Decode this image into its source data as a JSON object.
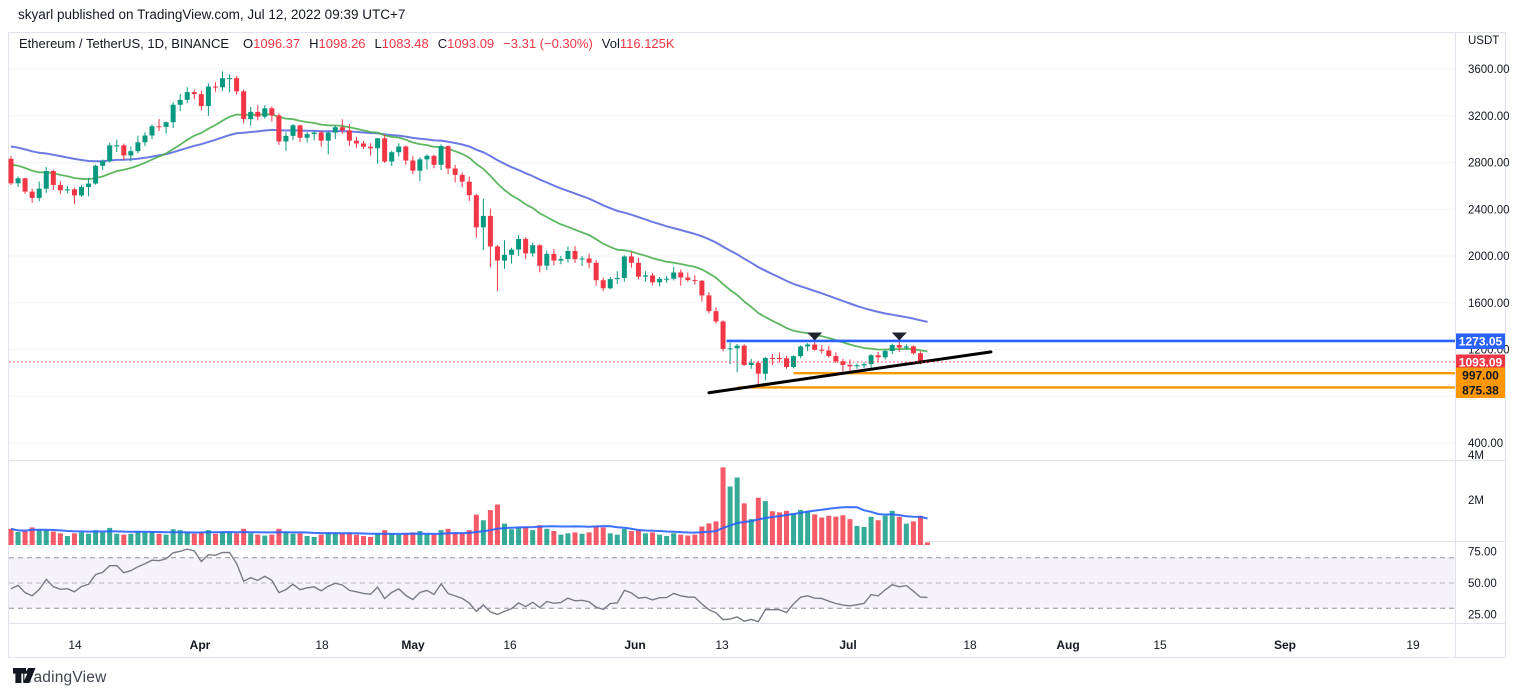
{
  "header": {
    "title": "skyarl published on TradingView.com, Jul 12, 2022 09:39 UTC+7"
  },
  "legend": {
    "symbol": "Ethereum / TetherUS, 1D, BINANCE",
    "fields": [
      {
        "k": "O",
        "v": "1096.37"
      },
      {
        "k": "H",
        "v": "1098.26"
      },
      {
        "k": "L",
        "v": "1083.48"
      },
      {
        "k": "C",
        "v": "1093.09"
      }
    ],
    "change": "−3.31 (−0.30%)",
    "vol_label": "Vol",
    "vol_value": "116.125K"
  },
  "footer": {
    "brand": "TradingView"
  },
  "colors": {
    "up": "#089981",
    "down": "#F23645",
    "ema_fast": "#4CAF50",
    "ema_slow": "#5C6BE0",
    "volume_ma": "#2962FF",
    "resistance": "#2962FF",
    "support": "#FF9800",
    "current_price": "#F23645",
    "trendline": "#000000",
    "rsi_line": "#787B86",
    "rsi_band": "rgba(126,87,194,0.08)",
    "grid": "#F2F4F9",
    "frame": "#E0E3EB",
    "text": "#131722"
  },
  "chart_data": {
    "type": "candlestick",
    "title": "Ethereum / TetherUS, 1D, BINANCE",
    "currency": "USDT",
    "price_axis_ticks": [
      "3600.00",
      "3200.00",
      "2800.00",
      "2400.00",
      "2000.00",
      "1600.00",
      "1200.00",
      "400.00"
    ],
    "price_axis_tick_values": [
      3600,
      3200,
      2800,
      2400,
      2000,
      1600,
      1200,
      400
    ],
    "grid_levels": [
      3600,
      3200,
      2800,
      2400,
      2000,
      1600,
      1200,
      800,
      400
    ],
    "volume_axis": [
      {
        "label": "4M",
        "value": 4
      },
      {
        "label": "2M",
        "value": 2
      }
    ],
    "rsi_axis": [
      {
        "label": "75.00",
        "value": 75
      },
      {
        "label": "50.00",
        "value": 50
      },
      {
        "label": "25.00",
        "value": 25
      }
    ],
    "time_axis_labels": [
      "14",
      "Apr",
      "18",
      "May",
      "16",
      "Jun",
      "13",
      "Jul",
      "18",
      "Aug",
      "15",
      "Sep",
      "19"
    ],
    "time_axis_month_flags": [
      0,
      1,
      0,
      1,
      0,
      1,
      0,
      1,
      0,
      1,
      0,
      1,
      0
    ],
    "candles": [
      [
        2832,
        2857,
        2607,
        2622
      ],
      [
        2622,
        2680,
        2590,
        2665
      ],
      [
        2665,
        2670,
        2532,
        2551
      ],
      [
        2551,
        2576,
        2454,
        2497
      ],
      [
        2497,
        2637,
        2468,
        2576
      ],
      [
        2576,
        2760,
        2540,
        2727
      ],
      [
        2727,
        2739,
        2565,
        2608
      ],
      [
        2608,
        2640,
        2528,
        2562
      ],
      [
        2562,
        2600,
        2538,
        2570
      ],
      [
        2570,
        2585,
        2444,
        2518
      ],
      [
        2518,
        2604,
        2505,
        2590
      ],
      [
        2590,
        2668,
        2510,
        2620
      ],
      [
        2620,
        2781,
        2610,
        2772
      ],
      [
        2772,
        2826,
        2735,
        2812
      ],
      [
        2812,
        2969,
        2800,
        2946
      ],
      [
        2946,
        2996,
        2890,
        2947
      ],
      [
        2947,
        2961,
        2820,
        2860
      ],
      [
        2860,
        2936,
        2810,
        2897
      ],
      [
        2897,
        3030,
        2880,
        2973
      ],
      [
        2973,
        3059,
        2940,
        3031
      ],
      [
        3031,
        3125,
        3000,
        3110
      ],
      [
        3110,
        3172,
        3070,
        3105
      ],
      [
        3105,
        3150,
        3047,
        3145
      ],
      [
        3145,
        3315,
        3095,
        3294
      ],
      [
        3294,
        3386,
        3240,
        3336
      ],
      [
        3336,
        3444,
        3310,
        3402
      ],
      [
        3402,
        3425,
        3340,
        3385
      ],
      [
        3385,
        3415,
        3245,
        3283
      ],
      [
        3283,
        3475,
        3200,
        3450
      ],
      [
        3450,
        3488,
        3405,
        3444
      ],
      [
        3444,
        3580,
        3410,
        3521
      ],
      [
        3521,
        3555,
        3400,
        3522
      ],
      [
        3522,
        3540,
        3380,
        3409
      ],
      [
        3409,
        3425,
        3135,
        3171
      ],
      [
        3171,
        3275,
        3115,
        3233
      ],
      [
        3233,
        3290,
        3160,
        3192
      ],
      [
        3192,
        3290,
        3175,
        3264
      ],
      [
        3264,
        3280,
        3150,
        3203
      ],
      [
        3203,
        3220,
        2950,
        2980
      ],
      [
        2980,
        3060,
        2900,
        3028
      ],
      [
        3028,
        3130,
        2990,
        3118
      ],
      [
        3118,
        3125,
        2975,
        3012
      ],
      [
        3012,
        3060,
        2970,
        3043
      ],
      [
        3043,
        3070,
        2990,
        3057
      ],
      [
        3057,
        3070,
        2935,
        2987
      ],
      [
        2987,
        3065,
        2870,
        3056
      ],
      [
        3056,
        3115,
        3000,
        3102
      ],
      [
        3102,
        3170,
        3045,
        3075
      ],
      [
        3075,
        3130,
        2940,
        2987
      ],
      [
        2987,
        3020,
        2925,
        2963
      ],
      [
        2963,
        2985,
        2915,
        2935
      ],
      [
        2935,
        2965,
        2860,
        2922
      ],
      [
        2922,
        3010,
        2790,
        3007
      ],
      [
        3007,
        3040,
        2795,
        2808
      ],
      [
        2808,
        2900,
        2770,
        2888
      ],
      [
        2888,
        2965,
        2850,
        2937
      ],
      [
        2937,
        2945,
        2780,
        2817
      ],
      [
        2817,
        2855,
        2700,
        2730
      ],
      [
        2730,
        2845,
        2640,
        2827
      ],
      [
        2827,
        2870,
        2740,
        2857
      ],
      [
        2857,
        2865,
        2750,
        2780
      ],
      [
        2780,
        2955,
        2735,
        2940
      ],
      [
        2940,
        2945,
        2700,
        2749
      ],
      [
        2749,
        2780,
        2630,
        2694
      ],
      [
        2694,
        2715,
        2590,
        2636
      ],
      [
        2636,
        2680,
        2470,
        2520
      ],
      [
        2520,
        2530,
        2155,
        2245
      ],
      [
        2245,
        2490,
        2050,
        2343
      ],
      [
        2343,
        2405,
        1905,
        2082
      ],
      [
        2082,
        2095,
        1700,
        1961
      ],
      [
        1961,
        2135,
        1890,
        2010
      ],
      [
        2010,
        2070,
        1935,
        2055
      ],
      [
        2055,
        2180,
        2000,
        2146
      ],
      [
        2146,
        2160,
        1975,
        2022
      ],
      [
        2022,
        2115,
        1995,
        2092
      ],
      [
        2092,
        2100,
        1860,
        1917
      ],
      [
        1917,
        2045,
        1880,
        2018
      ],
      [
        2018,
        2060,
        1920,
        1961
      ],
      [
        1961,
        2000,
        1930,
        1974
      ],
      [
        1974,
        2080,
        1945,
        2043
      ],
      [
        2043,
        2085,
        1940,
        1973
      ],
      [
        1973,
        2000,
        1915,
        1979
      ],
      [
        1979,
        2020,
        1895,
        1942
      ],
      [
        1942,
        1965,
        1745,
        1793
      ],
      [
        1793,
        1815,
        1700,
        1724
      ],
      [
        1724,
        1820,
        1715,
        1802
      ],
      [
        1802,
        1870,
        1760,
        1812
      ],
      [
        1812,
        2005,
        1780,
        1996
      ],
      [
        1996,
        2035,
        1900,
        1942
      ],
      [
        1942,
        1985,
        1800,
        1823
      ],
      [
        1823,
        1870,
        1780,
        1834
      ],
      [
        1834,
        1855,
        1750,
        1775
      ],
      [
        1775,
        1820,
        1740,
        1804
      ],
      [
        1804,
        1830,
        1770,
        1806
      ],
      [
        1806,
        1905,
        1790,
        1859
      ],
      [
        1859,
        1885,
        1745,
        1816
      ],
      [
        1816,
        1860,
        1780,
        1794
      ],
      [
        1794,
        1835,
        1755,
        1788
      ],
      [
        1788,
        1795,
        1610,
        1663
      ],
      [
        1663,
        1690,
        1510,
        1528
      ],
      [
        1528,
        1560,
        1420,
        1440
      ],
      [
        1440,
        1450,
        1185,
        1205
      ],
      [
        1205,
        1260,
        1075,
        1210
      ],
      [
        1210,
        1248,
        1005,
        1233
      ],
      [
        1233,
        1245,
        1060,
        1067
      ],
      [
        1067,
        1120,
        1035,
        1086
      ],
      [
        1086,
        1103,
        881,
        993
      ],
      [
        993,
        1135,
        935,
        1128
      ],
      [
        1128,
        1162,
        1065,
        1127
      ],
      [
        1127,
        1175,
        1090,
        1125
      ],
      [
        1125,
        1145,
        1035,
        1050
      ],
      [
        1050,
        1150,
        1040,
        1143
      ],
      [
        1143,
        1235,
        1125,
        1226
      ],
      [
        1226,
        1255,
        1185,
        1243
      ],
      [
        1243,
        1282,
        1190,
        1198
      ],
      [
        1198,
        1240,
        1165,
        1192
      ],
      [
        1192,
        1230,
        1130,
        1144
      ],
      [
        1144,
        1175,
        1085,
        1099
      ],
      [
        1099,
        1120,
        995,
        1068
      ],
      [
        1068,
        1115,
        1010,
        1056
      ],
      [
        1056,
        1080,
        1035,
        1065
      ],
      [
        1065,
        1090,
        1040,
        1075
      ],
      [
        1075,
        1160,
        1045,
        1151
      ],
      [
        1151,
        1180,
        1095,
        1133
      ],
      [
        1133,
        1205,
        1115,
        1187
      ],
      [
        1187,
        1250,
        1160,
        1238
      ],
      [
        1238,
        1275,
        1180,
        1216
      ],
      [
        1216,
        1245,
        1200,
        1227
      ],
      [
        1227,
        1235,
        1155,
        1168
      ],
      [
        1168,
        1185,
        1073,
        1096
      ],
      [
        1096.37,
        1098.26,
        1083.48,
        1093.09
      ]
    ],
    "volumes_millions": [
      0.72,
      0.58,
      0.62,
      0.78,
      0.7,
      0.66,
      0.6,
      0.52,
      0.4,
      0.52,
      0.56,
      0.5,
      0.66,
      0.56,
      0.76,
      0.5,
      0.46,
      0.5,
      0.62,
      0.56,
      0.6,
      0.5,
      0.46,
      0.7,
      0.66,
      0.6,
      0.5,
      0.56,
      0.66,
      0.5,
      0.6,
      0.56,
      0.52,
      0.72,
      0.52,
      0.46,
      0.42,
      0.46,
      0.72,
      0.56,
      0.5,
      0.52,
      0.4,
      0.36,
      0.46,
      0.56,
      0.5,
      0.52,
      0.56,
      0.46,
      0.4,
      0.36,
      0.52,
      0.66,
      0.5,
      0.46,
      0.52,
      0.56,
      0.62,
      0.5,
      0.46,
      0.66,
      0.72,
      0.56,
      0.52,
      0.66,
      1.35,
      1.1,
      1.55,
      1.8,
      0.95,
      0.7,
      0.76,
      0.82,
      0.66,
      0.88,
      0.72,
      0.62,
      0.46,
      0.52,
      0.56,
      0.5,
      0.56,
      0.82,
      0.78,
      0.52,
      0.46,
      0.72,
      0.62,
      0.66,
      0.52,
      0.56,
      0.46,
      0.4,
      0.52,
      0.46,
      0.42,
      0.46,
      0.82,
      0.96,
      1.05,
      3.45,
      2.6,
      3.0,
      1.85,
      1.15,
      2.1,
      1.95,
      1.5,
      1.45,
      1.52,
      1.4,
      1.56,
      1.5,
      1.36,
      1.22,
      1.3,
      1.26,
      1.32,
      1.15,
      0.85,
      0.8,
      1.25,
      1.1,
      1.3,
      1.52,
      1.25,
      0.95,
      1.05,
      1.3,
      0.116
    ],
    "last_volume_label": "116.125K",
    "overlays": {
      "ema_fast": {
        "period": 21,
        "seed": 2800
      },
      "ema_slow": {
        "period": 50,
        "seed": 2950
      },
      "volume_ma": {
        "period": 20
      },
      "rsi": {
        "period": 14,
        "seed": 45.5,
        "band_levels": [
          70,
          30
        ],
        "mid_level": 50
      }
    },
    "drawings": {
      "resistance_line": {
        "price": 1273.05,
        "label": "1273.05",
        "start_index": 101.5
      },
      "current_price_line": {
        "price": 1093.09,
        "label": "1093.09"
      },
      "support_lines": [
        {
          "price": 997.0,
          "label": "997.00",
          "start_index": 111
        },
        {
          "price": 875.38,
          "label": "875.38",
          "start_index": 103.1
        }
      ],
      "trendline": {
        "i1": 99,
        "p1": 830,
        "i2": 139,
        "p2": 1180
      },
      "markers_down": [
        {
          "index": 114,
          "price": 1345
        },
        {
          "index": 126,
          "price": 1345
        }
      ]
    },
    "ylim": [
      400,
      3600
    ],
    "grid": "faint-horizontal",
    "legend_position": "top-left"
  }
}
